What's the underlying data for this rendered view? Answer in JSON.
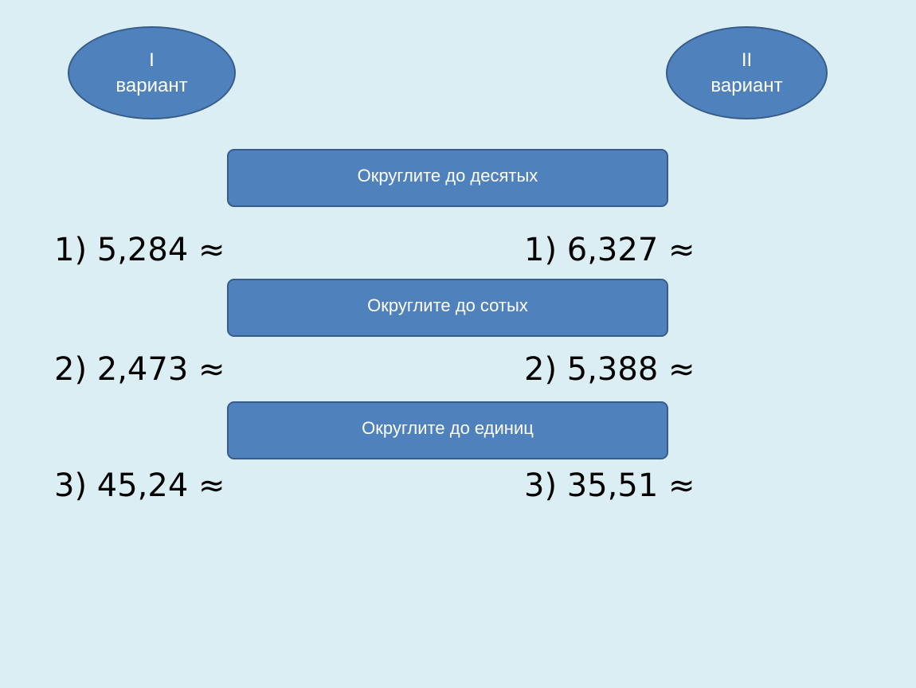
{
  "variants": [
    {
      "numeral": "I",
      "label": "вариант"
    },
    {
      "numeral": "II",
      "label": "вариант"
    }
  ],
  "tasks": [
    {
      "instruction": "Округлите до десятых",
      "variant1": "1) 5,284 ≈",
      "variant2": "1) 6,327 ≈"
    },
    {
      "instruction": "Округлите до сотых",
      "variant1": "2) 2,473 ≈",
      "variant2": "2) 5,388 ≈"
    },
    {
      "instruction": "Округлите до единиц",
      "variant1": "3) 45,24 ≈",
      "variant2": "3) 35,51 ≈"
    }
  ],
  "colors": {
    "background": "#dbeef4",
    "shape_fill": "#4f81bd",
    "shape_border": "#385d8a",
    "shape_text": "#ffffff"
  }
}
